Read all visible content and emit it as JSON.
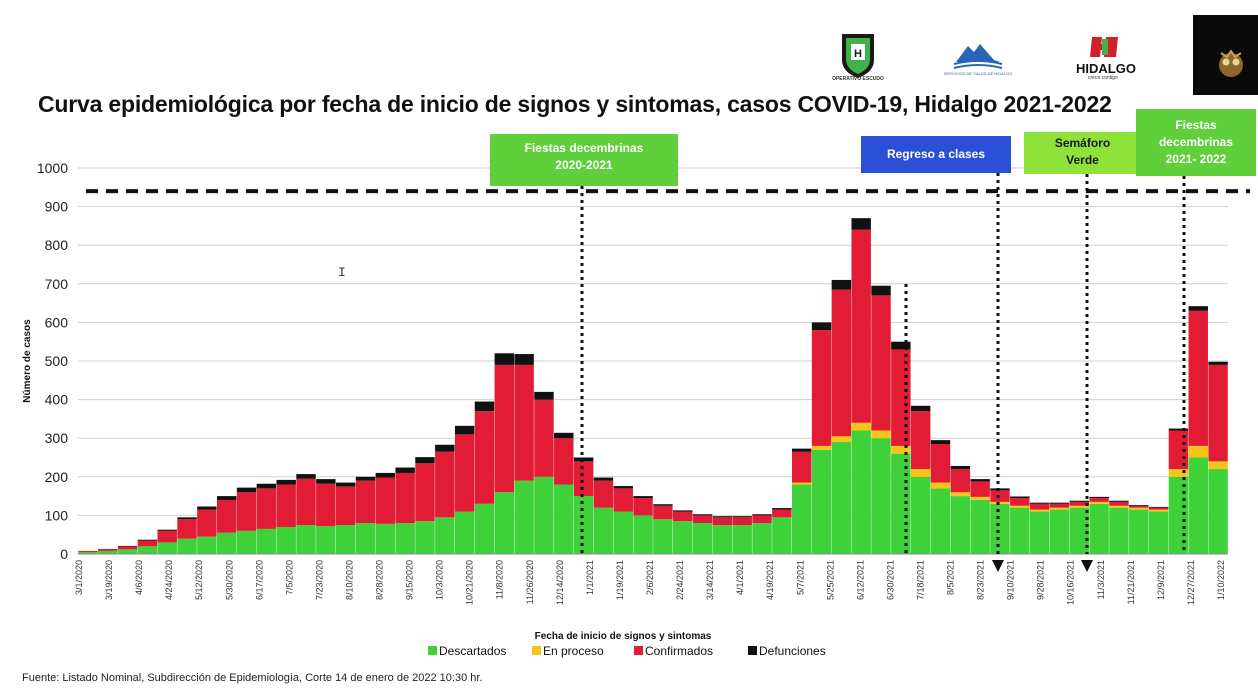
{
  "logos": {
    "escudo": {
      "text": "OPERATIVO ESCUDO"
    },
    "ssh": {
      "text": "SERVICIOS DE SALUD DE HIDALGO"
    },
    "hidalgo": {
      "text": "HIDALGO",
      "subtext": "crece contigo"
    }
  },
  "annotations": [
    {
      "id": "fiestas-2020",
      "text": [
        "Fiestas decembrinas",
        "2020-2021"
      ],
      "color": "#5fcf3b"
    },
    {
      "id": "regreso",
      "text": [
        "Regreso a clases"
      ],
      "color": "#2b4fd6"
    },
    {
      "id": "semaforo",
      "text": [
        "Semáforo",
        "Verde"
      ],
      "color": "#8ee23a"
    },
    {
      "id": "fiestas-2021",
      "text": [
        "Fiestas",
        "decembrinas",
        "2021- 2022"
      ],
      "color": "#5fcf3b"
    }
  ],
  "source": "Fuente: Listado Nominal, Subdirección de Epidemiología, Corte 14 de enero de 2022  10:30 hr.",
  "chart_data": {
    "type": "area",
    "title": "Curva epidemiológica por fecha de inicio de signos y sintomas, casos COVID-19, Hidalgo 2021-2022",
    "xlabel": "Fecha de inicio de signos y sintomas",
    "ylabel": "Número de casos",
    "ylim": [
      0,
      1000
    ],
    "yticks": [
      0,
      100,
      200,
      300,
      400,
      500,
      600,
      700,
      800,
      900,
      1000
    ],
    "grid": true,
    "legend_position": "bottom",
    "stacked": true,
    "reference_line": 940,
    "x_tick_dates": [
      "3/1/2020",
      "3/19/2020",
      "4/6/2020",
      "4/24/2020",
      "5/12/2020",
      "5/30/2020",
      "6/17/2020",
      "7/5/2020",
      "7/23/2020",
      "8/10/2020",
      "8/28/2020",
      "9/15/2020",
      "10/3/2020",
      "10/21/2020",
      "11/8/2020",
      "11/26/2020",
      "12/14/2020",
      "1/1/2021",
      "1/19/2021",
      "2/6/2021",
      "2/24/2021",
      "3/14/2021",
      "4/1/2021",
      "4/19/2021",
      "5/7/2021",
      "5/25/2021",
      "6/12/2021",
      "6/30/2021",
      "7/18/2021",
      "8/5/2021",
      "8/23/2021",
      "9/10/2021",
      "9/28/2021",
      "10/16/2021",
      "11/3/2021",
      "11/21/2021",
      "12/9/2021",
      "12/27/2021",
      "1/10/2022"
    ],
    "series": [
      {
        "name": "Descartados",
        "color": "#3fd13a",
        "values": [
          5,
          8,
          12,
          20,
          30,
          40,
          45,
          55,
          60,
          65,
          70,
          75,
          72,
          75,
          80,
          78,
          80,
          85,
          95,
          110,
          130,
          160,
          190,
          200,
          180,
          150,
          120,
          110,
          100,
          90,
          85,
          80,
          75,
          75,
          80,
          95,
          180,
          270,
          290,
          320,
          300,
          260,
          200,
          170,
          150,
          140,
          130,
          120,
          110,
          115,
          120,
          130,
          120,
          115,
          110,
          200,
          250,
          220
        ]
      },
      {
        "name": "En proceso",
        "color": "#f5c518",
        "values": [
          0,
          0,
          0,
          0,
          0,
          0,
          0,
          0,
          0,
          0,
          0,
          0,
          0,
          0,
          0,
          0,
          0,
          0,
          0,
          0,
          0,
          0,
          0,
          0,
          0,
          0,
          0,
          0,
          0,
          0,
          0,
          0,
          0,
          0,
          0,
          0,
          5,
          10,
          15,
          20,
          20,
          20,
          20,
          15,
          10,
          8,
          5,
          5,
          5,
          5,
          5,
          5,
          5,
          5,
          5,
          20,
          30,
          20
        ]
      },
      {
        "name": "Confirmados",
        "color": "#e31c35",
        "values": [
          3,
          5,
          8,
          15,
          30,
          50,
          70,
          85,
          100,
          105,
          110,
          120,
          110,
          100,
          110,
          120,
          130,
          150,
          170,
          200,
          240,
          330,
          300,
          200,
          120,
          90,
          70,
          60,
          45,
          35,
          25,
          20,
          20,
          20,
          20,
          20,
          80,
          300,
          380,
          500,
          350,
          250,
          150,
          100,
          60,
          40,
          30,
          20,
          15,
          10,
          10,
          10,
          10,
          5,
          5,
          100,
          350,
          250
        ]
      },
      {
        "name": "Defunciones",
        "color": "#111111",
        "values": [
          0,
          0,
          1,
          2,
          3,
          5,
          8,
          10,
          12,
          12,
          12,
          12,
          12,
          10,
          10,
          12,
          14,
          16,
          18,
          22,
          25,
          30,
          28,
          20,
          14,
          10,
          8,
          6,
          5,
          4,
          3,
          3,
          3,
          3,
          3,
          4,
          8,
          20,
          25,
          30,
          25,
          20,
          14,
          10,
          8,
          6,
          5,
          4,
          3,
          3,
          3,
          3,
          3,
          2,
          2,
          5,
          12,
          8
        ]
      }
    ]
  }
}
